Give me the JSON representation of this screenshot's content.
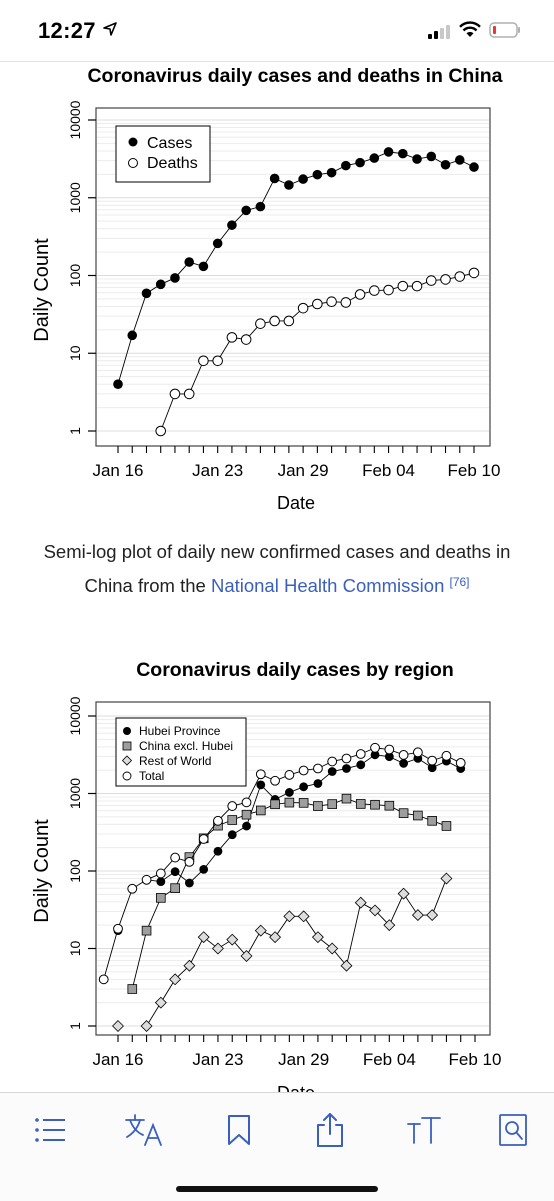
{
  "status_bar": {
    "time": "12:27",
    "icons": [
      "location-arrow-icon",
      "cellular-signal-icon",
      "wifi-icon",
      "battery-low-icon"
    ],
    "battery_color": "#e53935"
  },
  "chart1": {
    "title": "Coronavirus daily cases and deaths in China",
    "xlabel": "Date",
    "ylabel": "Daily Count",
    "y_ticks": [
      "1",
      "10",
      "100",
      "1000",
      "10000"
    ],
    "x_ticks": [
      "Jan 16",
      "Jan 23",
      "Jan 29",
      "Feb 04",
      "Feb 10"
    ],
    "legend": [
      "Cases",
      "Deaths"
    ]
  },
  "caption": {
    "text": "Semi-log plot of daily new confirmed cases and deaths in China from the ",
    "link": "National Health Commission",
    "ref": "[76]"
  },
  "chart2": {
    "title": "Coronavirus daily cases by region",
    "xlabel": "Date",
    "ylabel": "Daily Count",
    "y_ticks": [
      "1",
      "10",
      "100",
      "1000",
      "10000"
    ],
    "x_ticks": [
      "Jan 16",
      "Jan 23",
      "Jan 29",
      "Feb 04",
      "Feb 10"
    ],
    "legend": [
      "Hubei Province",
      "China excl. Hubei",
      "Rest of World",
      "Total"
    ]
  },
  "chart_data": [
    {
      "type": "scatter",
      "title": "Coronavirus daily cases and deaths in China",
      "xlabel": "Date",
      "ylabel": "Daily Count",
      "y_scale": "log",
      "ylim": [
        1,
        10000
      ],
      "xlim": [
        "Jan 16",
        "Feb 10"
      ],
      "grid": true,
      "legend_position": "top-left",
      "x": [
        "Jan 16",
        "Jan 17",
        "Jan 18",
        "Jan 19",
        "Jan 20",
        "Jan 21",
        "Jan 22",
        "Jan 23",
        "Jan 24",
        "Jan 25",
        "Jan 26",
        "Jan 27",
        "Jan 28",
        "Jan 29",
        "Jan 30",
        "Jan 31",
        "Feb 01",
        "Feb 02",
        "Feb 03",
        "Feb 04",
        "Feb 05",
        "Feb 06",
        "Feb 07",
        "Feb 08",
        "Feb 09",
        "Feb 10"
      ],
      "series": [
        {
          "name": "Cases",
          "marker": "filled-circle",
          "values": [
            4,
            17,
            59,
            77,
            93,
            149,
            131,
            259,
            444,
            688,
            769,
            1771,
            1459,
            1737,
            1982,
            2102,
            2590,
            2829,
            3235,
            3887,
            3694,
            3143,
            3399,
            2656,
            3062,
            2478
          ]
        },
        {
          "name": "Deaths",
          "marker": "open-circle",
          "values": [
            null,
            null,
            null,
            1,
            3,
            3,
            8,
            8,
            16,
            15,
            24,
            26,
            26,
            38,
            43,
            46,
            45,
            57,
            64,
            65,
            73,
            73,
            86,
            89,
            97,
            108
          ]
        }
      ]
    },
    {
      "type": "scatter",
      "title": "Coronavirus daily cases by region",
      "xlabel": "Date",
      "ylabel": "Daily Count",
      "y_scale": "log",
      "ylim": [
        1,
        10000
      ],
      "xlim": [
        "Jan 16",
        "Feb 10"
      ],
      "grid": true,
      "legend_position": "top-left",
      "x": [
        "Jan 15",
        "Jan 16",
        "Jan 17",
        "Jan 18",
        "Jan 19",
        "Jan 20",
        "Jan 21",
        "Jan 22",
        "Jan 23",
        "Jan 24",
        "Jan 25",
        "Jan 26",
        "Jan 27",
        "Jan 28",
        "Jan 29",
        "Jan 30",
        "Jan 31",
        "Feb 01",
        "Feb 02",
        "Feb 03",
        "Feb 04",
        "Feb 05",
        "Feb 06",
        "Feb 07",
        "Feb 08",
        "Feb 09",
        "Feb 10"
      ],
      "series": [
        {
          "name": "Hubei Province",
          "marker": "filled-circle",
          "values": [
            null,
            17,
            null,
            77,
            73,
            98,
            70,
            105,
            180,
            294,
            380,
            1291,
            840,
            1032,
            1220,
            1347,
            1921,
            2103,
            2345,
            3156,
            2987,
            2447,
            2841,
            2147,
            2618,
            2097,
            null
          ]
        },
        {
          "name": "China excl. Hubei",
          "marker": "gray-square",
          "values": [
            null,
            null,
            3,
            17,
            45,
            60,
            151,
            264,
            385,
            455,
            533,
            604,
            726,
            763,
            757,
            689,
            730,
            859,
            733,
            716,
            696,
            558,
            520,
            444,
            381,
            null,
            null
          ]
        },
        {
          "name": "Rest of World",
          "marker": "open-diamond",
          "values": [
            null,
            1,
            null,
            1,
            2,
            4,
            6,
            14,
            10,
            13,
            8,
            17,
            14,
            26,
            26,
            14,
            10,
            6,
            39,
            31,
            20,
            51,
            27,
            27,
            80,
            null,
            null
          ]
        },
        {
          "name": "Total",
          "marker": "open-circle",
          "values": [
            4,
            18,
            59,
            77,
            93,
            149,
            131,
            259,
            444,
            688,
            769,
            1771,
            1459,
            1737,
            1982,
            2102,
            2590,
            2829,
            3235,
            3887,
            3694,
            3143,
            3399,
            2656,
            3062,
            2478,
            null
          ]
        }
      ]
    }
  ]
}
